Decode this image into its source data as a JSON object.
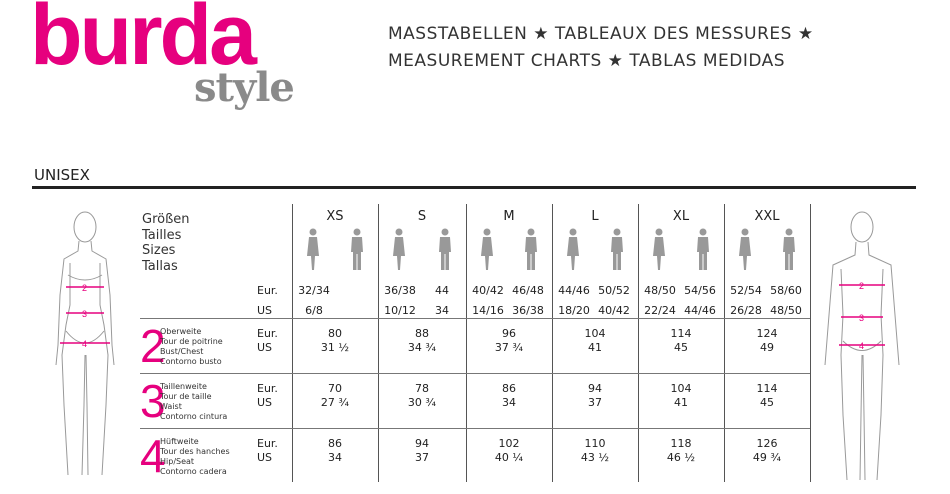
{
  "logo": {
    "brand": "burda",
    "sub": "style",
    "color": "#e6007e"
  },
  "title": {
    "line1": "MASSTABELLEN ★ TABLEAUX DES MESSURES ★",
    "line2": "MEASUREMENT CHARTS ★ TABLAS MEDIDAS"
  },
  "section": "UNISEX",
  "sizes_label": [
    "Größen",
    "Tailles",
    "Sizes",
    "Tallas"
  ],
  "units": {
    "eur": "Eur.",
    "us": "US"
  },
  "sizes": [
    {
      "name": "XS",
      "women_eur": "32/34",
      "men_eur": "",
      "women_us": "6/8",
      "men_us": ""
    },
    {
      "name": "S",
      "women_eur": "36/38",
      "men_eur": "44",
      "women_us": "10/12",
      "men_us": "34"
    },
    {
      "name": "M",
      "women_eur": "40/42",
      "men_eur": "46/48",
      "women_us": "14/16",
      "men_us": "36/38"
    },
    {
      "name": "L",
      "women_eur": "44/46",
      "men_eur": "50/52",
      "women_us": "18/20",
      "men_us": "40/42"
    },
    {
      "name": "XL",
      "women_eur": "48/50",
      "men_eur": "54/56",
      "women_us": "22/24",
      "men_us": "44/46"
    },
    {
      "name": "XXL",
      "women_eur": "52/54",
      "men_eur": "58/60",
      "women_us": "26/28",
      "men_us": "48/50"
    }
  ],
  "measurements": [
    {
      "number": "2",
      "labels": [
        "Oberweite",
        "Tour de poitrine",
        "Bust/Chest",
        "Contorno busto"
      ],
      "eur": [
        "80",
        "88",
        "96",
        "104",
        "114",
        "124"
      ],
      "us": [
        "31 ½",
        "34 ¾",
        "37 ¾",
        "41",
        "45",
        "49"
      ]
    },
    {
      "number": "3",
      "labels": [
        "Taillenweite",
        "Tour de taille",
        "Waist",
        "Contorno cintura"
      ],
      "eur": [
        "70",
        "78",
        "86",
        "94",
        "104",
        "114"
      ],
      "us": [
        "27 ¾",
        "30 ¾",
        "34",
        "37",
        "41",
        "45"
      ]
    },
    {
      "number": "4",
      "labels": [
        "Hüftweite",
        "Tour des hanches",
        "Hip/Seat",
        "Contorno cadera"
      ],
      "eur": [
        "86",
        "94",
        "102",
        "110",
        "118",
        "126"
      ],
      "us": [
        "34",
        "37",
        "40 ¼",
        "43 ½",
        "46 ½",
        "49 ¾"
      ]
    }
  ],
  "figure_labels": [
    "2",
    "3",
    "4"
  ]
}
